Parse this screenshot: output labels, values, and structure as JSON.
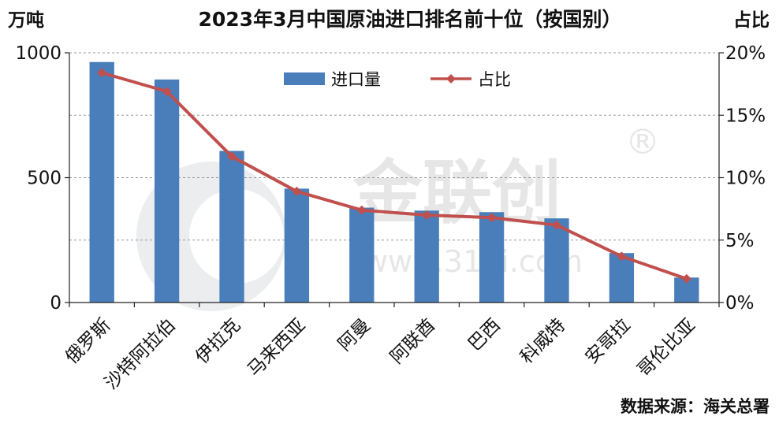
{
  "chart_data": {
    "type": "bar",
    "title": "2023年3月中国原油进口排名前十位（按国别）",
    "ylabel": "万吨",
    "y2label": "占比",
    "categories": [
      "俄罗斯",
      "沙特阿拉伯",
      "伊拉克",
      "马来西亚",
      "阿曼",
      "阿联酋",
      "巴西",
      "科威特",
      "安哥拉",
      "哥伦比亚"
    ],
    "series": [
      {
        "name": "进口量",
        "type": "bar",
        "axis": "left",
        "color": "#4a7ebb",
        "values": [
          963,
          893,
          607,
          456,
          380,
          368,
          362,
          337,
          198,
          100
        ]
      },
      {
        "name": "占比",
        "type": "line",
        "axis": "right",
        "color": "#c0504d",
        "values": [
          18.4,
          16.9,
          11.7,
          8.9,
          7.4,
          7.0,
          6.8,
          6.2,
          3.7,
          1.9
        ]
      }
    ],
    "ylim": [
      0,
      1000
    ],
    "y_ticks": [
      "0",
      "500",
      "1000"
    ],
    "y2lim": [
      0,
      20
    ],
    "y2_ticks": [
      "0%",
      "5%",
      "10%",
      "15%",
      "20%"
    ],
    "grid": true,
    "legend": "top-center"
  },
  "watermark": {
    "text": "金联创",
    "subtext": "www.315i.com",
    "mark": "®"
  },
  "source": "数据来源：海关总署"
}
